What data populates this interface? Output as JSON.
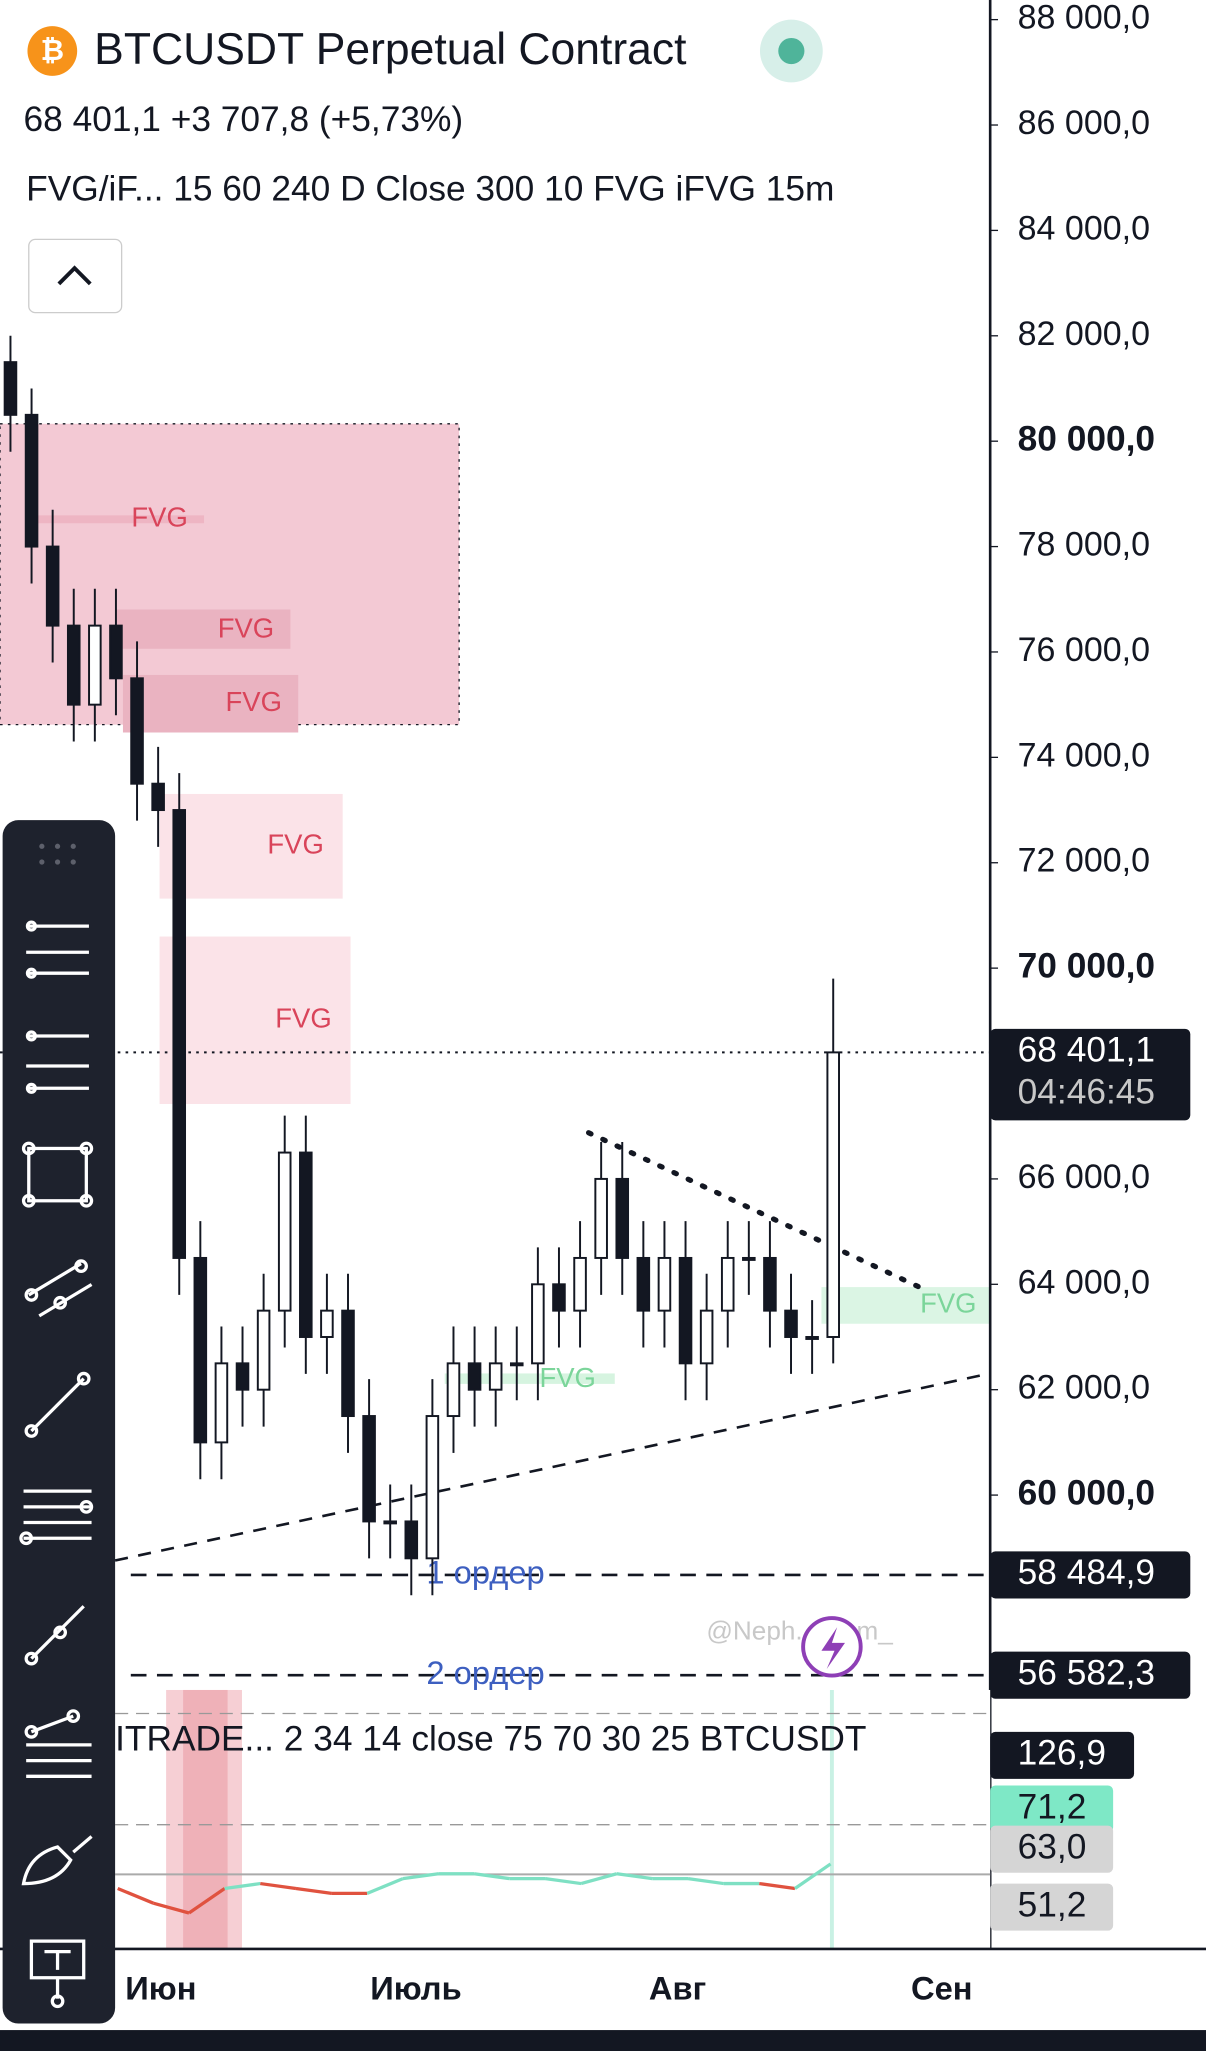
{
  "chart_data": {
    "type": "candlestick",
    "title": "BTCUSDT Perpetual Contract",
    "subtitle": "68 401,1  +3 707,8 (+5,73%)",
    "indicator_main": "FVG/iF...   15 60 240 D Close 300 10 FVG iFVG 15m",
    "indicator_sub": "ITRADE...  2 34 14 close 75 70 30 25 BTCUSDT",
    "categories": [
      "Июн",
      "Июль",
      "Авг",
      "Сен"
    ],
    "open": [
      81500,
      80500,
      78000,
      76500,
      75000,
      76500,
      75500,
      73500,
      73000,
      64500,
      61000,
      62500,
      62000,
      63500,
      66500,
      63000,
      63500,
      61500,
      59500,
      59500,
      58800,
      61500,
      62500,
      62000,
      62500,
      62500,
      64000,
      63500,
      64500,
      66000,
      64500,
      63500,
      64500,
      62500,
      63500,
      64500,
      64500,
      63500,
      63000,
      63000
    ],
    "high": [
      82000,
      81000,
      78700,
      77200,
      77200,
      77200,
      76200,
      74200,
      73700,
      65200,
      63200,
      63200,
      64200,
      67200,
      67200,
      64200,
      64200,
      62200,
      60200,
      60200,
      62200,
      63200,
      63200,
      63200,
      63200,
      64700,
      64700,
      65200,
      66700,
      66700,
      65200,
      65200,
      65200,
      64200,
      65200,
      65200,
      65200,
      64200,
      63700,
      69800
    ],
    "low": [
      79800,
      77300,
      75800,
      74300,
      74300,
      74800,
      72800,
      72300,
      63800,
      60300,
      60300,
      61300,
      61300,
      62800,
      62300,
      62300,
      60800,
      58800,
      58800,
      58100,
      58100,
      60800,
      61300,
      61300,
      61800,
      61800,
      62800,
      62800,
      63800,
      63800,
      62800,
      62800,
      61800,
      61800,
      62800,
      63800,
      62800,
      62300,
      62300,
      62500
    ],
    "close": [
      80500,
      78000,
      76500,
      75000,
      76500,
      75500,
      73500,
      73000,
      64500,
      61000,
      62500,
      62000,
      63500,
      66500,
      63000,
      63500,
      61500,
      59500,
      59500,
      58800,
      61500,
      62500,
      62000,
      62500,
      62500,
      64000,
      63500,
      64500,
      66000,
      64500,
      63500,
      64500,
      62500,
      63500,
      64500,
      64500,
      63500,
      63000,
      63000,
      68401.1
    ],
    "ylim": [
      56000,
      88400
    ],
    "yticks": [
      {
        "value": 88000,
        "label": "88 000,0"
      },
      {
        "value": 86000,
        "label": "86 000,0"
      },
      {
        "value": 84000,
        "label": "84 000,0"
      },
      {
        "value": 82000,
        "label": "82 000,0"
      },
      {
        "value": 80000,
        "label": "80 000,0"
      },
      {
        "value": 78000,
        "label": "78 000,0"
      },
      {
        "value": 76000,
        "label": "76 000,0"
      },
      {
        "value": 74000,
        "label": "74 000,0"
      },
      {
        "value": 72000,
        "label": "72 000,0"
      },
      {
        "value": 70000,
        "label": "70 000,0"
      },
      {
        "value": 66000,
        "label": "66 000,0"
      },
      {
        "value": 64000,
        "label": "64 000,0"
      },
      {
        "value": 62000,
        "label": "62 000,0"
      },
      {
        "value": 60000,
        "label": "60 000,0"
      }
    ],
    "price_labels": [
      {
        "value": 68401.1,
        "label": "68 401,1"
      },
      {
        "value": 58484.9,
        "label": "58 484,9"
      },
      {
        "value": 56582.3,
        "label": "56 582,3"
      }
    ],
    "countdown": "04:46:45",
    "orders": [
      "1 ордер",
      "2 ордер"
    ],
    "fvg_labels": [
      "FVG",
      "FVG",
      "FVG",
      "FVG",
      "FVG",
      "FVG",
      "FVG"
    ],
    "watermark": "@Neph... Sam_",
    "oscillator": {
      "values": [
        55,
        52,
        50,
        55,
        56,
        55,
        54,
        54,
        57,
        58,
        58,
        57,
        57,
        56,
        58,
        57,
        57,
        56,
        56,
        55,
        60
      ],
      "levels": [
        {
          "value": 126.9,
          "label": "126,9"
        },
        {
          "value": 71.2,
          "label": "71,2"
        },
        {
          "value": 63.0,
          "label": "63,0"
        },
        {
          "value": 51.2,
          "label": "51,2"
        }
      ]
    }
  }
}
